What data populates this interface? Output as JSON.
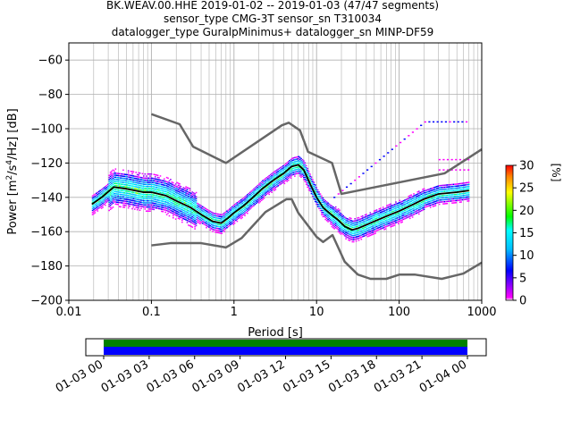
{
  "title": {
    "line1": "BK.WEAV.00.HHE   2019-01-02 -- 2019-01-03  (47/47 segments)",
    "line2": "sensor_type CMG-3T sensor_sn T310034",
    "line3": "datalogger_type GuralpMinimus+ datalogger_sn MINP-DF59"
  },
  "chart_data": [
    {
      "type": "heatmap",
      "title": "BK.WEAV.00.HHE   2019-01-02 -- 2019-01-03  (47/47 segments)",
      "xlabel": "Period [s]",
      "ylabel": "Power [m²/s⁴/Hz] [dB]",
      "xscale": "log",
      "xlim": [
        0.01,
        1000
      ],
      "ylim": [
        -200,
        -50
      ],
      "x_ticks": [
        "0.01",
        "0.1",
        "1",
        "10",
        "100",
        "1000"
      ],
      "y_ticks": [
        "−200",
        "−180",
        "−160",
        "−140",
        "−120",
        "−100",
        "−80",
        "−60"
      ],
      "grid": true,
      "colorbar": {
        "label": "[%]",
        "range": [
          0,
          30
        ],
        "ticks": [
          "0",
          "5",
          "10",
          "15",
          "20",
          "25",
          "30"
        ],
        "colors": [
          "#ffffff",
          "#ff00ff",
          "#0000ff",
          "#00ffff",
          "#00ff00",
          "#ffff00",
          "#ff0000"
        ]
      },
      "series": [
        {
          "role": "mean",
          "color": "#000000",
          "points": [
            [
              0.019,
              -144
            ],
            [
              0.025,
              -140
            ],
            [
              0.035,
              -134
            ],
            [
              0.05,
              -135
            ],
            [
              0.08,
              -137
            ],
            [
              0.1,
              -137
            ],
            [
              0.15,
              -139
            ],
            [
              0.2,
              -142
            ],
            [
              0.3,
              -146
            ],
            [
              0.4,
              -150
            ],
            [
              0.55,
              -154
            ],
            [
              0.7,
              -155
            ],
            [
              0.85,
              -152
            ],
            [
              1.0,
              -149
            ],
            [
              1.3,
              -145
            ],
            [
              1.7,
              -140
            ],
            [
              2.2,
              -135
            ],
            [
              3.0,
              -130
            ],
            [
              4.0,
              -126
            ],
            [
              5.0,
              -122
            ],
            [
              6.0,
              -121
            ],
            [
              7.0,
              -124
            ],
            [
              8.5,
              -133
            ],
            [
              10,
              -140
            ],
            [
              12,
              -146
            ],
            [
              15,
              -150
            ],
            [
              18,
              -153
            ],
            [
              22,
              -157
            ],
            [
              27,
              -159
            ],
            [
              32,
              -158
            ],
            [
              40,
              -156
            ],
            [
              50,
              -154
            ],
            [
              70,
              -151
            ],
            [
              100,
              -148
            ],
            [
              150,
              -144
            ],
            [
              200,
              -141
            ],
            [
              300,
              -138
            ],
            [
              500,
              -137
            ],
            [
              700,
              -136
            ]
          ]
        },
        {
          "role": "high-noise-model",
          "color": "#666666",
          "points": [
            [
              0.1,
              -91.5
            ],
            [
              0.22,
              -97.4
            ],
            [
              0.32,
              -110.5
            ],
            [
              0.8,
              -120
            ],
            [
              3.8,
              -98
            ],
            [
              4.6,
              -96.5
            ],
            [
              6.3,
              -101
            ],
            [
              7.9,
              -113.5
            ],
            [
              15.4,
              -120
            ],
            [
              20,
              -138
            ],
            [
              354.8,
              -126
            ],
            [
              1000,
              -112
            ]
          ]
        },
        {
          "role": "low-noise-model",
          "color": "#666666",
          "points": [
            [
              0.1,
              -168
            ],
            [
              0.17,
              -166.7
            ],
            [
              0.4,
              -166.7
            ],
            [
              0.8,
              -169.2
            ],
            [
              1.24,
              -163.7
            ],
            [
              2.4,
              -148.6
            ],
            [
              4.3,
              -141.1
            ],
            [
              5,
              -141.1
            ],
            [
              6,
              -149
            ],
            [
              10,
              -163
            ],
            [
              12,
              -166
            ],
            [
              15.6,
              -162
            ],
            [
              21.9,
              -177.5
            ],
            [
              31.6,
              -185
            ],
            [
              45,
              -187.5
            ],
            [
              70,
              -187.5
            ],
            [
              101,
              -185
            ],
            [
              154,
              -185
            ],
            [
              328,
              -187.5
            ],
            [
              600,
              -184.4
            ],
            [
              1000,
              -178
            ]
          ]
        }
      ]
    },
    {
      "type": "timeline",
      "x_ticks": [
        "01-03 00",
        "01-03 03",
        "01-03 06",
        "01-03 09",
        "01-03 12",
        "01-03 15",
        "01-03 18",
        "01-03 21",
        "01-04 00"
      ],
      "segments": [
        {
          "role": "data",
          "color": "#0000ff",
          "start_hours": 0,
          "end_hours": 24
        },
        {
          "role": "coverage",
          "color": "#008000",
          "start_hours": 0,
          "end_hours": 24
        }
      ]
    }
  ]
}
